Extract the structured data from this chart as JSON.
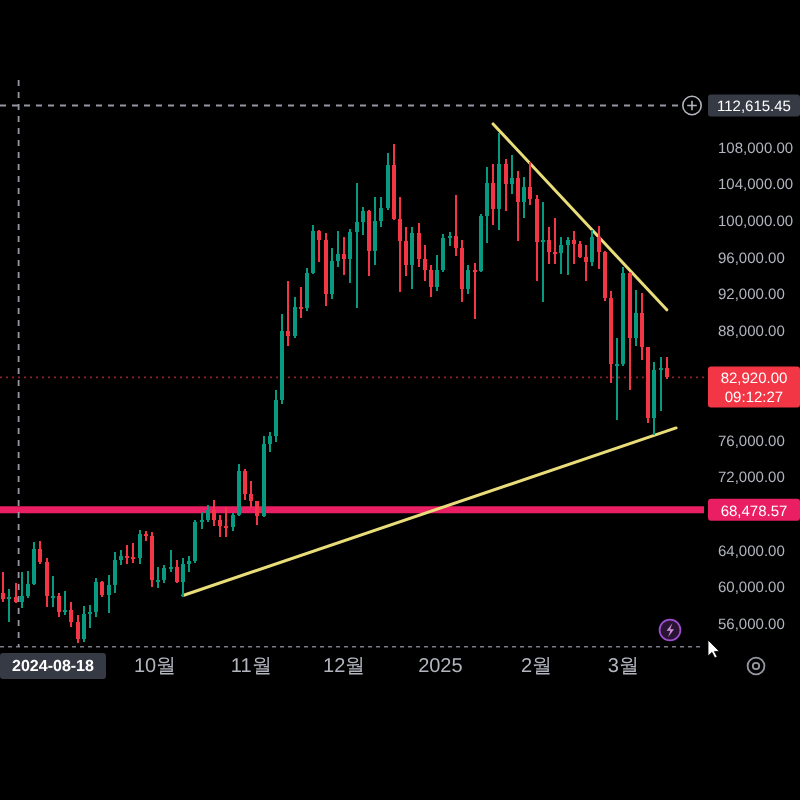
{
  "chart_data": {
    "type": "candlestick",
    "x": [
      "2024-08-13",
      "2024-08-15",
      "2024-08-17",
      "2024-08-19",
      "2024-08-21",
      "2024-08-23",
      "2024-08-25",
      "2024-08-27",
      "2024-08-29",
      "2024-08-31",
      "2024-09-02",
      "2024-09-04",
      "2024-09-06",
      "2024-09-08",
      "2024-09-10",
      "2024-09-12",
      "2024-09-14",
      "2024-09-16",
      "2024-09-18",
      "2024-09-20",
      "2024-09-22",
      "2024-09-24",
      "2024-09-26",
      "2024-09-28",
      "2024-09-30",
      "2024-10-02",
      "2024-10-04",
      "2024-10-06",
      "2024-10-08",
      "2024-10-10",
      "2024-10-12",
      "2024-10-14",
      "2024-10-16",
      "2024-10-18",
      "2024-10-20",
      "2024-10-22",
      "2024-10-24",
      "2024-10-26",
      "2024-10-28",
      "2024-10-30",
      "2024-11-01",
      "2024-11-03",
      "2024-11-05",
      "2024-11-07",
      "2024-11-09",
      "2024-11-11",
      "2024-11-13",
      "2024-11-15",
      "2024-11-17",
      "2024-11-19",
      "2024-11-21",
      "2024-11-23",
      "2024-11-25",
      "2024-11-27",
      "2024-11-29",
      "2024-12-01",
      "2024-12-03",
      "2024-12-05",
      "2024-12-07",
      "2024-12-09",
      "2024-12-11",
      "2024-12-13",
      "2024-12-15",
      "2024-12-17",
      "2024-12-19",
      "2024-12-21",
      "2024-12-23",
      "2024-12-25",
      "2024-12-27",
      "2024-12-29",
      "2024-12-31",
      "2025-01-02",
      "2025-01-04",
      "2025-01-06",
      "2025-01-08",
      "2025-01-10",
      "2025-01-12",
      "2025-01-14",
      "2025-01-16",
      "2025-01-18",
      "2025-01-20",
      "2025-01-22",
      "2025-01-24",
      "2025-01-26",
      "2025-01-28",
      "2025-01-30",
      "2025-02-01",
      "2025-02-03",
      "2025-02-05",
      "2025-02-07",
      "2025-02-09",
      "2025-02-11",
      "2025-02-13",
      "2025-02-15",
      "2025-02-17",
      "2025-02-19",
      "2025-02-21",
      "2025-02-23",
      "2025-02-25",
      "2025-02-27",
      "2025-03-01",
      "2025-03-03",
      "2025-03-05",
      "2025-03-07",
      "2025-03-09",
      "2025-03-11",
      "2025-03-13",
      "2025-03-15"
    ],
    "ohlc": [
      [
        59400,
        61700,
        58400,
        58700
      ],
      [
        58700,
        59800,
        56200,
        58900
      ],
      [
        58900,
        60500,
        58300,
        58400
      ],
      [
        58400,
        61700,
        57700,
        59000
      ],
      [
        59000,
        61800,
        58800,
        60400
      ],
      [
        60400,
        64900,
        60200,
        64200
      ],
      [
        64200,
        65000,
        62500,
        62800
      ],
      [
        62800,
        63200,
        57800,
        59000
      ],
      [
        59000,
        61200,
        57900,
        59100
      ],
      [
        59100,
        59400,
        56700,
        57300
      ],
      [
        57300,
        59600,
        57000,
        57500
      ],
      [
        57500,
        58400,
        55700,
        56200
      ],
      [
        56200,
        57000,
        53900,
        54400
      ],
      [
        54400,
        58000,
        54000,
        57100
      ],
      [
        57100,
        58100,
        55600,
        57300
      ],
      [
        57300,
        61000,
        56800,
        60600
      ],
      [
        60600,
        60700,
        58900,
        59200
      ],
      [
        59200,
        61300,
        57200,
        60300
      ],
      [
        60300,
        63800,
        59400,
        63000
      ],
      [
        63000,
        64100,
        62400,
        63400
      ],
      [
        63400,
        64600,
        62500,
        63300
      ],
      [
        63300,
        64800,
        62700,
        63200
      ],
      [
        63200,
        66300,
        62500,
        65800
      ],
      [
        65800,
        66200,
        65100,
        65600
      ],
      [
        65600,
        66000,
        60000,
        60800
      ],
      [
        60800,
        62200,
        59900,
        60800
      ],
      [
        60800,
        62400,
        60500,
        62100
      ],
      [
        62100,
        64100,
        61700,
        62200
      ],
      [
        62200,
        63000,
        60500,
        60600
      ],
      [
        60600,
        63200,
        58900,
        62500
      ],
      [
        62500,
        63400,
        61700,
        62900
      ],
      [
        62900,
        67400,
        62700,
        67100
      ],
      [
        67100,
        68200,
        66400,
        67400
      ],
      [
        67400,
        69000,
        67100,
        68400
      ],
      [
        68400,
        69500,
        66700,
        67400
      ],
      [
        67400,
        67900,
        65500,
        66700
      ],
      [
        66700,
        68800,
        65500,
        66600
      ],
      [
        66600,
        68100,
        66100,
        67900
      ],
      [
        67900,
        73500,
        67800,
        72700
      ],
      [
        72700,
        72900,
        69500,
        70200
      ],
      [
        70200,
        71600,
        68700,
        69400
      ],
      [
        69400,
        69400,
        66800,
        67800
      ],
      [
        67800,
        76500,
        67700,
        75600
      ],
      [
        75600,
        77000,
        74800,
        76500
      ],
      [
        76500,
        81500,
        75900,
        80400
      ],
      [
        80400,
        89800,
        80000,
        88000
      ],
      [
        88000,
        93500,
        86400,
        87400
      ],
      [
        87400,
        91700,
        87200,
        90600
      ],
      [
        90600,
        92800,
        89400,
        90500
      ],
      [
        90500,
        94900,
        90200,
        94300
      ],
      [
        94300,
        99600,
        94200,
        98900
      ],
      [
        98900,
        99000,
        95500,
        97900
      ],
      [
        97900,
        98700,
        90700,
        92000
      ],
      [
        92000,
        97000,
        91500,
        95600
      ],
      [
        95600,
        98900,
        95000,
        96400
      ],
      [
        96400,
        98200,
        94100,
        95800
      ],
      [
        95800,
        99100,
        93200,
        98800
      ],
      [
        98800,
        104100,
        90500,
        99900
      ],
      [
        99900,
        101500,
        98500,
        101100
      ],
      [
        101100,
        101200,
        94000,
        96700
      ],
      [
        96700,
        102600,
        95200,
        100000
      ],
      [
        100000,
        102600,
        99300,
        101400
      ],
      [
        101400,
        107400,
        101200,
        106100
      ],
      [
        106100,
        108400,
        100100,
        100200
      ],
      [
        100200,
        102600,
        92200,
        97800
      ],
      [
        97800,
        99400,
        94000,
        95200
      ],
      [
        95200,
        99400,
        92600,
        98700
      ],
      [
        98700,
        99800,
        95000,
        95800
      ],
      [
        95800,
        97400,
        93500,
        94700
      ],
      [
        94700,
        95200,
        91700,
        92800
      ],
      [
        92800,
        96300,
        92400,
        94600
      ],
      [
        94600,
        98600,
        94400,
        98100
      ],
      [
        98100,
        98800,
        97300,
        98400
      ],
      [
        98400,
        102800,
        96200,
        97000
      ],
      [
        97000,
        97900,
        91200,
        92600
      ],
      [
        92600,
        95200,
        92000,
        94600
      ],
      [
        94600,
        95400,
        89300,
        94500
      ],
      [
        94500,
        100800,
        94400,
        100500
      ],
      [
        100500,
        105900,
        97600,
        104100
      ],
      [
        104100,
        106200,
        99600,
        101300
      ],
      [
        101300,
        109600,
        99000,
        106200
      ],
      [
        106200,
        106800,
        101100,
        104000
      ],
      [
        104000,
        107200,
        103000,
        104700
      ],
      [
        104700,
        105500,
        97800,
        102100
      ],
      [
        102100,
        104800,
        100300,
        103700
      ],
      [
        103700,
        106400,
        101700,
        102400
      ],
      [
        102400,
        102800,
        93500,
        97700
      ],
      [
        97700,
        102100,
        91200,
        97900
      ],
      [
        97900,
        99400,
        95300,
        96600
      ],
      [
        96600,
        100300,
        95300,
        96500
      ],
      [
        96500,
        98300,
        94200,
        97400
      ],
      [
        97400,
        98300,
        94100,
        97900
      ],
      [
        97900,
        98900,
        95300,
        97500
      ],
      [
        97500,
        97800,
        96000,
        96100
      ],
      [
        96100,
        97400,
        93400,
        95500
      ],
      [
        95500,
        99000,
        95100,
        98300
      ],
      [
        98300,
        99500,
        94800,
        96600
      ],
      [
        96600,
        96700,
        91300,
        91600
      ],
      [
        91600,
        92400,
        82300,
        84400
      ],
      [
        84400,
        87200,
        78300,
        84400
      ],
      [
        84400,
        95000,
        84200,
        94300
      ],
      [
        94300,
        94400,
        81500,
        87200
      ],
      [
        87200,
        92500,
        86400,
        90000
      ],
      [
        90000,
        92100,
        84800,
        86200
      ],
      [
        86200,
        86200,
        77900,
        78500
      ],
      [
        78500,
        84600,
        76600,
        83700
      ],
      [
        83700,
        85200,
        79300,
        84000
      ],
      [
        84000,
        85100,
        82700,
        82920
      ]
    ],
    "series": [
      {
        "type": "line",
        "x": [
          "2025-01-18",
          "2025-03-15"
        ],
        "values": [
          110600,
          90300
        ],
        "color": "#e9dd7a"
      },
      {
        "type": "line",
        "x": [
          "2024-10-10",
          "2025-03-18"
        ],
        "values": [
          59100,
          77400
        ],
        "color": "#e9dd7a"
      }
    ],
    "xlim": [
      "2024-08-12",
      "2025-03-27"
    ],
    "ylim": [
      53500,
      115400
    ],
    "xticks": [
      {
        "value": "2024-10-01",
        "label": "10월"
      },
      {
        "value": "2024-11-01",
        "label": "11월"
      },
      {
        "value": "2024-12-01",
        "label": "12월"
      },
      {
        "value": "2025-01-01",
        "label": "2025"
      },
      {
        "value": "2025-02-01",
        "label": "2월"
      },
      {
        "value": "2025-03-01",
        "label": "3월"
      }
    ],
    "yticks": [
      {
        "value": 56000,
        "label": "56,000.00"
      },
      {
        "value": 60000,
        "label": "60,000.00"
      },
      {
        "value": 64000,
        "label": "64,000.00"
      },
      {
        "value": 72000,
        "label": "72,000.00"
      },
      {
        "value": 76000,
        "label": "76,000.00"
      },
      {
        "value": 88000,
        "label": "88,000.00"
      },
      {
        "value": 92000,
        "label": "92,000.00"
      },
      {
        "value": 96000,
        "label": "96,000.00"
      },
      {
        "value": 100000,
        "label": "100,000.00"
      },
      {
        "value": 104000,
        "label": "104,000.00"
      },
      {
        "value": 108000,
        "label": "108,000.00"
      }
    ],
    "ref_lines": [
      {
        "axis": "y",
        "value": 68478.57,
        "label": "68,478.57",
        "color": "#e91e63",
        "line_style": "solid"
      },
      {
        "axis": "y",
        "value": 82920,
        "label": "82,920.00\n09:12:27",
        "color": "#f23645",
        "line_style": "dotted"
      },
      {
        "axis": "y",
        "value": 112615.45,
        "label": "112,615.45",
        "color": "#9598a1",
        "line_style": "dashed"
      },
      {
        "axis": "x",
        "value": "2024-08-18",
        "label": "2024-08-18",
        "color": "#9598a1",
        "line_style": "dashed"
      }
    ]
  }
}
